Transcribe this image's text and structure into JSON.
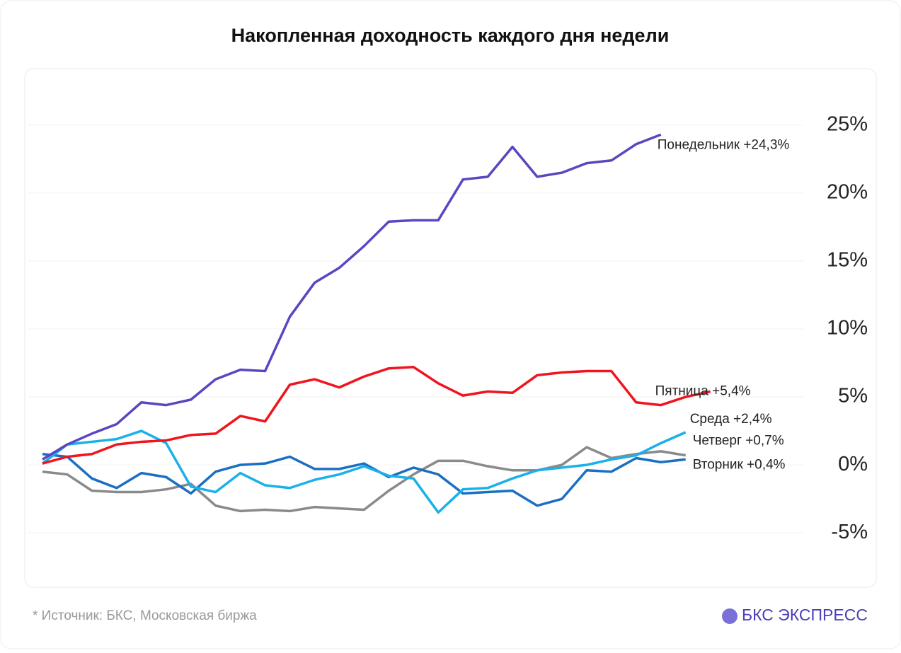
{
  "chart_data": {
    "type": "line",
    "title": "Накопленная доходность каждого дня недели",
    "source": "*  Источник: БКС, Московская биржа",
    "brand": "БКС ЭКСПРЕСС",
    "categories": [
      null,
      null,
      null,
      null,
      null,
      null,
      null,
      null,
      null,
      null,
      null,
      null,
      null,
      null,
      null,
      null,
      null,
      null,
      null,
      null,
      null,
      null,
      null,
      null,
      null,
      null,
      null,
      null
    ],
    "ylim": [
      -9,
      29
    ],
    "yticks": [
      {
        "value": -5,
        "label": "-5%"
      },
      {
        "value": 0,
        "label": "0%"
      },
      {
        "value": 5,
        "label": "5%"
      },
      {
        "value": 10,
        "label": "10%"
      },
      {
        "value": 15,
        "label": "15%"
      },
      {
        "value": 20,
        "label": "20%"
      },
      {
        "value": 25,
        "label": "25%"
      }
    ],
    "grid": true,
    "series": [
      {
        "name": "Четверг +0,7%",
        "color": "#8a8a8a",
        "values": [
          -0.5,
          -0.7,
          -1.9,
          -2.0,
          -2.0,
          -1.8,
          -1.4,
          -3.0,
          -3.4,
          -3.3,
          -3.4,
          -3.1,
          -3.2,
          -3.3,
          -1.9,
          -0.7,
          0.3,
          0.3,
          -0.1,
          -0.4,
          -0.4,
          0.0,
          1.3,
          0.5,
          0.8,
          1.0,
          0.7,
          null
        ]
      },
      {
        "name": "Вторник +0,4%",
        "color": "#1b6fc2",
        "values": [
          0.8,
          0.6,
          -1.0,
          -1.7,
          -0.6,
          -0.9,
          -2.1,
          -0.5,
          0.0,
          0.1,
          0.6,
          -0.3,
          -0.3,
          0.1,
          -0.9,
          -0.2,
          -0.7,
          -2.1,
          -2.0,
          -1.9,
          -3.0,
          -2.5,
          -0.4,
          -0.5,
          0.5,
          0.2,
          0.4,
          null
        ]
      },
      {
        "name": "Среда +2,4%",
        "color": "#1ab0ea",
        "values": [
          0.1,
          1.5,
          1.7,
          1.9,
          2.5,
          1.6,
          -1.6,
          -2.0,
          -0.6,
          -1.5,
          -1.7,
          -1.1,
          -0.7,
          -0.1,
          -0.8,
          -1.0,
          -3.5,
          -1.8,
          -1.7,
          -1.0,
          -0.4,
          -0.2,
          0.0,
          0.4,
          0.7,
          1.6,
          2.4,
          null
        ]
      },
      {
        "name": "Пятница +5,4%",
        "color": "#f0141e",
        "values": [
          0.1,
          0.6,
          0.8,
          1.5,
          1.7,
          1.8,
          2.2,
          2.3,
          3.6,
          3.2,
          5.9,
          6.3,
          5.7,
          6.5,
          7.1,
          7.2,
          6.0,
          5.1,
          5.4,
          5.3,
          6.6,
          6.8,
          6.9,
          6.9,
          4.6,
          4.4,
          5.0,
          5.4
        ]
      },
      {
        "name": "Понедельник +24,3%",
        "color": "#5b45c0",
        "values": [
          0.4,
          1.5,
          2.3,
          3.0,
          4.6,
          4.4,
          4.8,
          6.3,
          7.0,
          6.9,
          10.9,
          13.4,
          14.5,
          16.1,
          17.9,
          18.0,
          18.0,
          21.0,
          21.2,
          23.4,
          21.2,
          21.5,
          22.2,
          22.4,
          23.6,
          24.3,
          null,
          null
        ]
      }
    ]
  }
}
